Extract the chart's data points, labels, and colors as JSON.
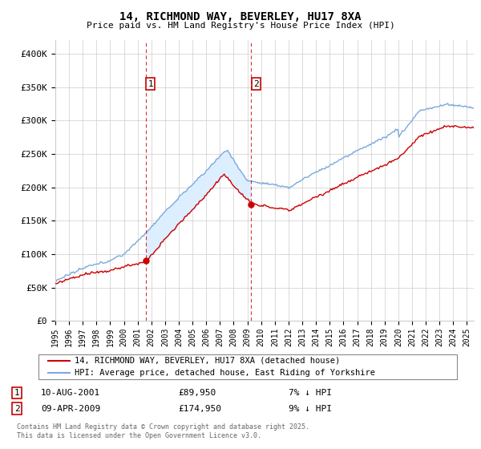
{
  "title": "14, RICHMOND WAY, BEVERLEY, HU17 8XA",
  "subtitle": "Price paid vs. HM Land Registry's House Price Index (HPI)",
  "ylabel_ticks": [
    "£0",
    "£50K",
    "£100K",
    "£150K",
    "£200K",
    "£250K",
    "£300K",
    "£350K",
    "£400K"
  ],
  "ytick_values": [
    0,
    50000,
    100000,
    150000,
    200000,
    250000,
    300000,
    350000,
    400000
  ],
  "ylim": [
    0,
    420000
  ],
  "xlim_start": 1995.0,
  "xlim_end": 2025.5,
  "purchase1_date": 2001.6,
  "purchase1_price": 89950,
  "purchase2_date": 2009.27,
  "purchase2_price": 174950,
  "legend_line1": "14, RICHMOND WAY, BEVERLEY, HU17 8XA (detached house)",
  "legend_line2": "HPI: Average price, detached house, East Riding of Yorkshire",
  "annotation1_label": "1",
  "annotation1_date": "10-AUG-2001",
  "annotation1_price": "£89,950",
  "annotation1_hpi": "7% ↓ HPI",
  "annotation2_label": "2",
  "annotation2_date": "09-APR-2009",
  "annotation2_price": "£174,950",
  "annotation2_hpi": "9% ↓ HPI",
  "footnote": "Contains HM Land Registry data © Crown copyright and database right 2025.\nThis data is licensed under the Open Government Licence v3.0.",
  "red_color": "#cc0000",
  "blue_color": "#7aaadd",
  "fill_color": "#ddeeff",
  "grid_color": "#cccccc",
  "background_color": "#ffffff"
}
